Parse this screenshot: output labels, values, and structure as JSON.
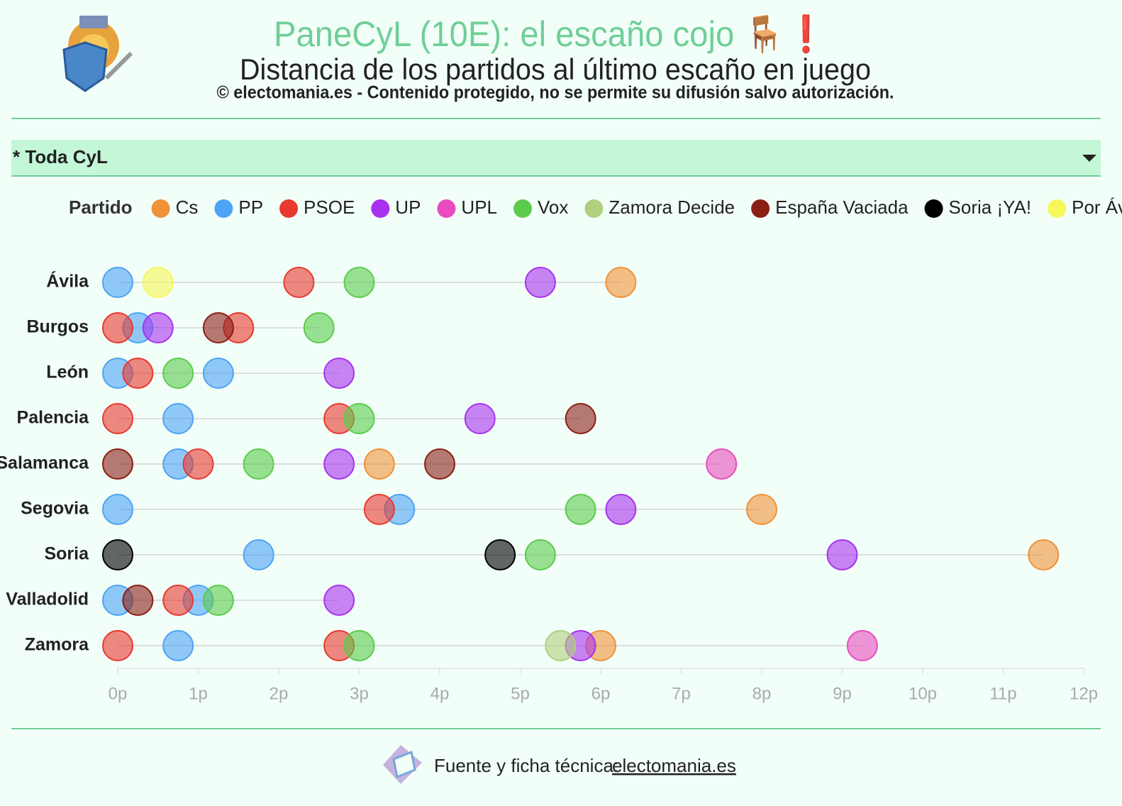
{
  "chart_data": {
    "type": "dot",
    "title": "PaneCyL (10E): el escaño cojo 🪑❗",
    "subtitle": "Distancia de los partidos al último escaño en juego",
    "note": "© electomania.es - Contenido protegido, no se permite su difusión salvo autorización.",
    "filter": "* Toda CyL",
    "legend_title": "Partido",
    "categories": [
      "Ávila",
      "Burgos",
      "León",
      "Palencia",
      "Salamanca",
      "Segovia",
      "Soria",
      "Valladolid",
      "Zamora"
    ],
    "series": [
      {
        "name": "Cs",
        "color": "#f0923a",
        "values": [
          [
            6.25
          ],
          [],
          [],
          [],
          [
            3.25
          ],
          [
            8
          ],
          [
            11.5
          ],
          [],
          [
            6
          ]
        ]
      },
      {
        "name": "PP",
        "color": "#4da3f5",
        "values": [
          [
            0
          ],
          [
            0.25
          ],
          [
            0,
            1.25
          ],
          [
            0.75
          ],
          [
            0.75
          ],
          [
            0,
            3.5
          ],
          [
            1.75
          ],
          [
            0,
            1
          ],
          [
            0.75
          ]
        ]
      },
      {
        "name": "PSOE",
        "color": "#e8392f",
        "values": [
          [
            2.25
          ],
          [
            0,
            1.5
          ],
          [
            0.25
          ],
          [
            0,
            2.75
          ],
          [
            1
          ],
          [
            3.25
          ],
          [],
          [
            0.75
          ],
          [
            0,
            2.75
          ]
        ]
      },
      {
        "name": "UP",
        "color": "#a832f0",
        "values": [
          [
            5.25
          ],
          [
            0.5
          ],
          [
            2.75
          ],
          [
            4.5
          ],
          [
            2.75
          ],
          [
            6.25
          ],
          [
            9
          ],
          [
            2.75
          ],
          [
            5.75
          ]
        ]
      },
      {
        "name": "UPL",
        "color": "#e84cc0",
        "values": [
          [],
          [],
          [],
          [],
          [
            7.5
          ],
          [],
          [],
          [],
          [
            9.25
          ]
        ]
      },
      {
        "name": "Vox",
        "color": "#5ccb4c",
        "values": [
          [
            3
          ],
          [
            2.5
          ],
          [
            0.75
          ],
          [
            3
          ],
          [
            1.75
          ],
          [
            5.75
          ],
          [
            5.25
          ],
          [
            1.25
          ],
          [
            3
          ]
        ]
      },
      {
        "name": "Zamora Decide",
        "color": "#b0cf7f",
        "values": [
          [],
          [],
          [],
          [],
          [],
          [],
          [],
          [],
          [
            5.5
          ]
        ]
      },
      {
        "name": "España Vaciada",
        "color": "#8b1f16",
        "values": [
          [],
          [
            1.25
          ],
          [],
          [
            5.75
          ],
          [
            0,
            4
          ],
          [],
          [],
          [
            0.25
          ],
          []
        ]
      },
      {
        "name": "Soria ¡YA!",
        "color": "#000000",
        "values": [
          [],
          [],
          [],
          [],
          [],
          [],
          [
            0,
            4.75
          ],
          [],
          []
        ]
      },
      {
        "name": "Por Ávila",
        "color": "#f7f75a",
        "values": [
          [
            0.5
          ],
          [],
          [],
          [],
          [],
          [],
          [],
          [],
          []
        ]
      }
    ],
    "xlim": [
      0,
      12
    ],
    "xticks": [
      {
        "value": 0,
        "label": "0p"
      },
      {
        "value": 1,
        "label": "1p"
      },
      {
        "value": 2,
        "label": "2p"
      },
      {
        "value": 3,
        "label": "3p"
      },
      {
        "value": 4,
        "label": "4p"
      },
      {
        "value": 5,
        "label": "5p"
      },
      {
        "value": 6,
        "label": "6p"
      },
      {
        "value": 7,
        "label": "7p"
      },
      {
        "value": 8,
        "label": "8p"
      },
      {
        "value": 9,
        "label": "9p"
      },
      {
        "value": 10,
        "label": "10p"
      },
      {
        "value": 11,
        "label": "11p"
      },
      {
        "value": 12,
        "label": "12p"
      }
    ]
  },
  "footer": {
    "text": "Fuente y ficha técnica:",
    "link": "electomania.es"
  }
}
